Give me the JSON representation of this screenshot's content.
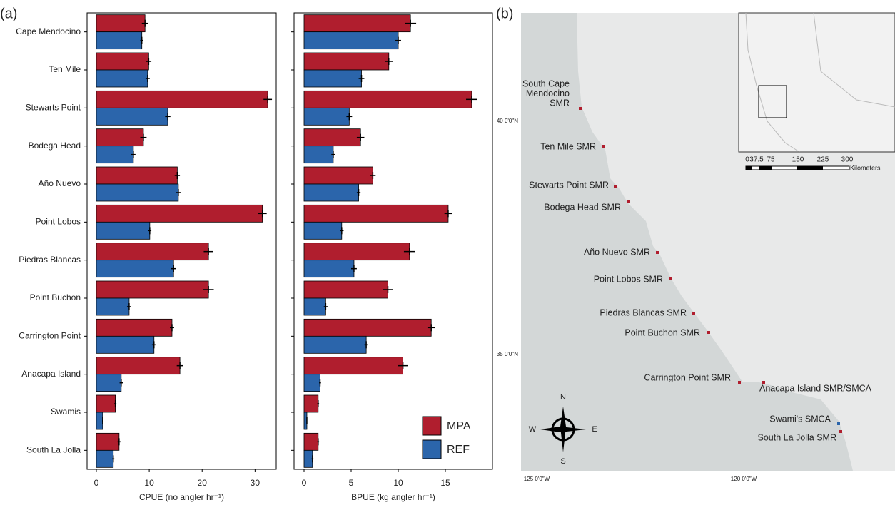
{
  "panel_labels": [
    "(a)",
    "(b)"
  ],
  "chart_data": [
    {
      "type": "bar",
      "orientation": "horizontal",
      "categories": [
        "Cape Mendocino",
        "Ten Mile",
        "Stewarts Point",
        "Bodega Head",
        "Año Nuevo",
        "Point Lobos",
        "Piedras Blancas",
        "Point Buchon",
        "Carrington Point",
        "Anacapa Island",
        "Swamis",
        "South La Jolla"
      ],
      "series": [
        {
          "name": "MPA",
          "color": "#b01e2e",
          "values": [
            9.2,
            9.9,
            32.4,
            8.9,
            15.3,
            31.4,
            21.2,
            21.2,
            14.3,
            15.8,
            3.6,
            4.3
          ],
          "errors": [
            0.6,
            0.5,
            0.8,
            0.6,
            0.5,
            0.8,
            0.9,
            1.0,
            0.4,
            0.6,
            0.2,
            0.3
          ]
        },
        {
          "name": "REF",
          "color": "#2b65ab",
          "values": [
            8.6,
            9.7,
            13.5,
            7.0,
            15.5,
            10.1,
            14.6,
            6.2,
            10.9,
            4.7,
            1.2,
            3.2
          ],
          "errors": [
            0.3,
            0.4,
            0.5,
            0.4,
            0.5,
            0.3,
            0.5,
            0.4,
            0.4,
            0.3,
            0.1,
            0.2
          ]
        }
      ],
      "xlim": [
        -1.75,
        34
      ],
      "xticks": [
        0,
        10,
        20,
        30
      ],
      "xlabel": "CPUE (no angler hr⁻¹)"
    },
    {
      "type": "bar",
      "orientation": "horizontal",
      "categories": [
        null,
        null,
        null,
        null,
        null,
        null,
        null,
        null,
        null,
        null,
        null,
        null
      ],
      "series": [
        {
          "name": "MPA",
          "color": "#b01e2e",
          "values": [
            11.3,
            9.0,
            17.8,
            6.0,
            7.3,
            15.3,
            11.2,
            8.9,
            13.5,
            10.5,
            1.5,
            1.5
          ],
          "errors": [
            0.6,
            0.4,
            0.6,
            0.4,
            0.3,
            0.4,
            0.6,
            0.5,
            0.4,
            0.5,
            0.1,
            0.1
          ]
        },
        {
          "name": "REF",
          "color": "#2b65ab",
          "values": [
            10.0,
            6.1,
            4.8,
            3.1,
            5.8,
            4.0,
            5.3,
            2.3,
            6.6,
            1.7,
            0.3,
            0.9
          ],
          "errors": [
            0.3,
            0.3,
            0.3,
            0.2,
            0.2,
            0.2,
            0.3,
            0.2,
            0.2,
            0.1,
            0.0,
            0.1
          ]
        }
      ],
      "xlim": [
        -1.06,
        20
      ],
      "xticks": [
        0,
        5,
        10,
        15
      ],
      "xlabel": "BPUE (kg angler hr⁻¹)",
      "legend": "lower right"
    }
  ],
  "map": {
    "sites": [
      {
        "label": [
          "South Cape",
          "Mendocino",
          "SMR"
        ],
        "kind": "MPA"
      },
      {
        "label": [
          "Ten Mile SMR"
        ],
        "kind": "MPA"
      },
      {
        "label": [
          "Stewarts Point SMR"
        ],
        "kind": "MPA"
      },
      {
        "label": [
          "Bodega Head SMR"
        ],
        "kind": "MPA"
      },
      {
        "label": [
          "Año Nuevo SMR"
        ],
        "kind": "MPA"
      },
      {
        "label": [
          "Point Lobos SMR"
        ],
        "kind": "MPA"
      },
      {
        "label": [
          "Piedras Blancas SMR"
        ],
        "kind": "MPA"
      },
      {
        "label": [
          "Point Buchon SMR"
        ],
        "kind": "MPA"
      },
      {
        "label": [
          "Carrington Point SMR"
        ],
        "kind": "MPA"
      },
      {
        "label": [
          "Anacapa Island SMR/SMCA"
        ],
        "kind": "MPA"
      },
      {
        "label": [
          "Swami's SMCA"
        ],
        "kind": "REF"
      },
      {
        "label": [
          "South La Jolla SMR"
        ],
        "kind": "MPA"
      }
    ],
    "lat_labels": [
      "40 0'0\"N",
      "35 0'0\"N"
    ],
    "lon_labels": [
      "125 0'0\"W",
      "120 0'0\"W"
    ],
    "scale_labels": [
      "0",
      "37.5",
      "75",
      "150",
      "225",
      "300"
    ],
    "scale_unit": "Kilometers",
    "compass": [
      "N",
      "E",
      "S",
      "W"
    ]
  }
}
